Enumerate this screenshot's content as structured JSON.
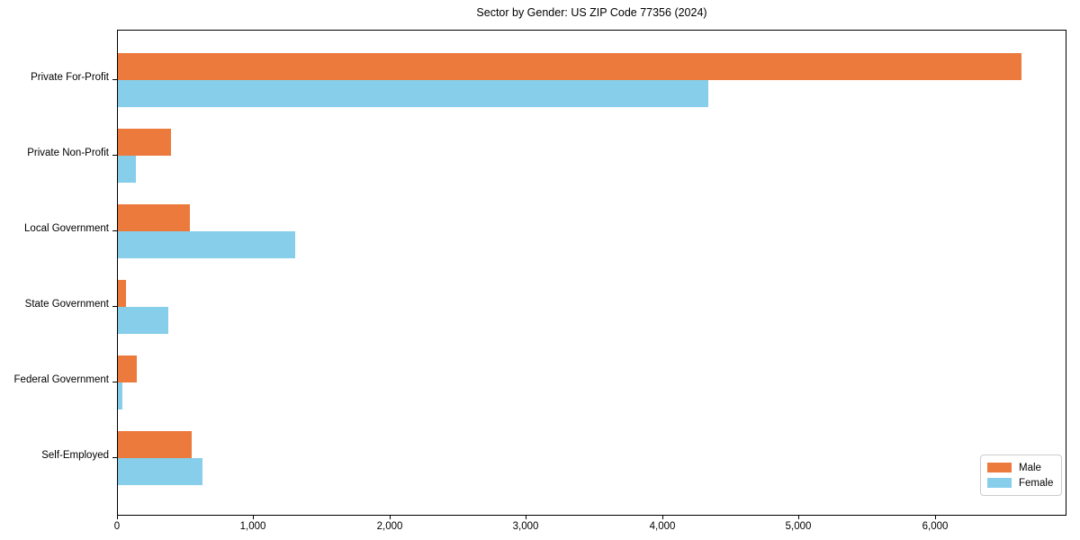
{
  "title": "Sector by Gender: US ZIP Code 77356 (2024)",
  "chart_data": {
    "type": "bar",
    "orientation": "horizontal",
    "title": "Sector by Gender: US ZIP Code 77356 (2024)",
    "categories": [
      "Private For-Profit",
      "Private Non-Profit",
      "Local Government",
      "State Government",
      "Federal Government",
      "Self-Employed"
    ],
    "series": [
      {
        "name": "Male",
        "color": "#ec7a3d",
        "values": [
          6630,
          390,
          530,
          60,
          140,
          540
        ]
      },
      {
        "name": "Female",
        "color": "#87ceeb",
        "values": [
          4330,
          130,
          1300,
          370,
          35,
          620
        ]
      }
    ],
    "xlabel": "",
    "ylabel": "",
    "xlim": [
      0,
      6965
    ],
    "xticks": [
      0,
      1000,
      2000,
      3000,
      4000,
      5000,
      6000
    ],
    "xtick_labels": [
      "0",
      "1,000",
      "2,000",
      "3,000",
      "4,000",
      "5,000",
      "6,000"
    ],
    "grid": false,
    "legend_position": "lower right",
    "legend_items": [
      {
        "label": "Male",
        "color": "#ec7a3d"
      },
      {
        "label": "Female",
        "color": "#87ceeb"
      }
    ]
  }
}
